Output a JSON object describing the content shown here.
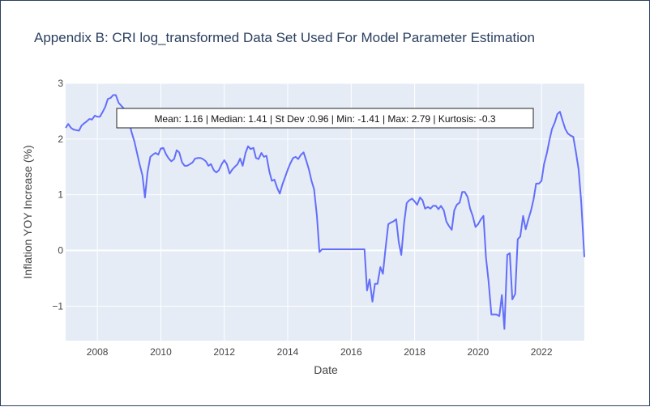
{
  "chart_data": {
    "type": "line",
    "title": "Appendix B: CRI log_transformed Data Set Used For Model Parameter Estimation",
    "xlabel": "Date",
    "ylabel": "Inflation YOY Increase (%)",
    "xlim": [
      2007.0,
      2023.35
    ],
    "ylim": [
      -1.62,
      3.0
    ],
    "x_ticks": [
      2008,
      2010,
      2012,
      2014,
      2016,
      2018,
      2020,
      2022
    ],
    "x_tick_labels": [
      "2008",
      "2010",
      "2012",
      "2014",
      "2016",
      "2018",
      "2020",
      "2022"
    ],
    "y_ticks": [
      -1,
      0,
      1,
      2,
      3
    ],
    "y_tick_labels": [
      "−1",
      "0",
      "1",
      "2",
      "3"
    ],
    "grid": true,
    "annotation": "Mean: 1.16 | Median: 1.41 | St Dev :0.96 | Min: -1.41 | Max: 2.79 | Kurtosis: -0.3",
    "series": [
      {
        "color": "#636efa",
        "x": [
          2007.0,
          2007.08,
          2007.17,
          2007.25,
          2007.33,
          2007.42,
          2007.5,
          2007.58,
          2007.67,
          2007.75,
          2007.83,
          2007.92,
          2008.0,
          2008.08,
          2008.17,
          2008.25,
          2008.33,
          2008.42,
          2008.5,
          2008.58,
          2008.67,
          2008.75,
          2008.83,
          2008.92,
          2009.0,
          2009.08,
          2009.17,
          2009.25,
          2009.33,
          2009.42,
          2009.5,
          2009.58,
          2009.67,
          2009.75,
          2009.83,
          2009.92,
          2010.0,
          2010.08,
          2010.17,
          2010.25,
          2010.33,
          2010.42,
          2010.5,
          2010.58,
          2010.67,
          2010.75,
          2010.83,
          2010.92,
          2011.0,
          2011.08,
          2011.17,
          2011.25,
          2011.33,
          2011.42,
          2011.5,
          2011.58,
          2011.67,
          2011.75,
          2011.83,
          2011.92,
          2012.0,
          2012.08,
          2012.17,
          2012.25,
          2012.33,
          2012.42,
          2012.5,
          2012.58,
          2012.67,
          2012.75,
          2012.83,
          2012.92,
          2013.0,
          2013.08,
          2013.17,
          2013.25,
          2013.33,
          2013.42,
          2013.5,
          2013.58,
          2013.67,
          2013.75,
          2013.83,
          2013.92,
          2014.0,
          2014.08,
          2014.17,
          2014.25,
          2014.33,
          2014.42,
          2014.5,
          2014.58,
          2014.67,
          2014.75,
          2014.83,
          2014.92,
          2015.0,
          2015.08,
          2015.17,
          2015.25,
          2015.33,
          2015.42,
          2015.5,
          2016.0,
          2016.42,
          2016.5,
          2016.58,
          2016.67,
          2016.75,
          2016.83,
          2016.92,
          2017.0,
          2017.08,
          2017.17,
          2017.25,
          2017.33,
          2017.42,
          2017.5,
          2017.58,
          2017.67,
          2017.75,
          2017.83,
          2017.92,
          2018.0,
          2018.08,
          2018.17,
          2018.25,
          2018.33,
          2018.42,
          2018.5,
          2018.58,
          2018.67,
          2018.75,
          2018.83,
          2018.92,
          2019.0,
          2019.08,
          2019.17,
          2019.25,
          2019.33,
          2019.42,
          2019.5,
          2019.58,
          2019.67,
          2019.75,
          2019.83,
          2019.92,
          2020.0,
          2020.08,
          2020.17,
          2020.25,
          2020.33,
          2020.42,
          2020.5,
          2020.58,
          2020.67,
          2020.75,
          2020.83,
          2020.92,
          2021.0,
          2021.08,
          2021.17,
          2021.25,
          2021.33,
          2021.42,
          2021.5,
          2021.58,
          2021.67,
          2021.75,
          2021.83,
          2021.92,
          2022.0,
          2022.08,
          2022.17,
          2022.25,
          2022.33,
          2022.42,
          2022.5,
          2022.58,
          2022.67,
          2022.75,
          2022.83,
          2022.92,
          2023.0,
          2023.08,
          2023.17,
          2023.25,
          2023.35
        ],
        "y": [
          2.2,
          2.27,
          2.2,
          2.17,
          2.16,
          2.15,
          2.24,
          2.28,
          2.32,
          2.36,
          2.35,
          2.42,
          2.4,
          2.4,
          2.49,
          2.58,
          2.72,
          2.74,
          2.79,
          2.79,
          2.65,
          2.6,
          2.55,
          2.5,
          2.3,
          2.12,
          1.95,
          1.75,
          1.55,
          1.35,
          0.95,
          1.4,
          1.68,
          1.72,
          1.75,
          1.72,
          1.83,
          1.84,
          1.72,
          1.65,
          1.6,
          1.64,
          1.8,
          1.76,
          1.58,
          1.52,
          1.52,
          1.55,
          1.58,
          1.65,
          1.66,
          1.66,
          1.64,
          1.6,
          1.52,
          1.55,
          1.44,
          1.4,
          1.44,
          1.55,
          1.62,
          1.55,
          1.38,
          1.45,
          1.5,
          1.55,
          1.65,
          1.52,
          1.75,
          1.87,
          1.82,
          1.84,
          1.66,
          1.64,
          1.75,
          1.68,
          1.7,
          1.42,
          1.25,
          1.27,
          1.12,
          1.02,
          1.18,
          1.32,
          1.45,
          1.56,
          1.66,
          1.68,
          1.64,
          1.72,
          1.76,
          1.62,
          1.45,
          1.25,
          1.1,
          0.62,
          -0.03,
          0.02,
          0.02,
          0.02,
          0.02,
          0.02,
          0.02,
          0.02,
          0.02,
          -0.72,
          -0.52,
          -0.92,
          -0.6,
          -0.6,
          -0.3,
          -0.42,
          0.02,
          0.47,
          0.5,
          0.52,
          0.56,
          0.15,
          -0.08,
          0.5,
          0.85,
          0.9,
          0.93,
          0.88,
          0.82,
          0.95,
          0.9,
          0.75,
          0.78,
          0.75,
          0.8,
          0.8,
          0.74,
          0.8,
          0.72,
          0.52,
          0.44,
          0.37,
          0.72,
          0.82,
          0.86,
          1.05,
          1.05,
          0.96,
          0.75,
          0.62,
          0.42,
          0.47,
          0.55,
          0.62,
          -0.13,
          -0.55,
          -1.15,
          -1.15,
          -1.15,
          -1.18,
          -0.8,
          -1.41,
          -0.08,
          -0.05,
          -0.88,
          -0.78,
          0.2,
          0.25,
          0.62,
          0.38,
          0.55,
          0.72,
          0.92,
          1.2,
          1.2,
          1.25,
          1.55,
          1.75,
          1.98,
          2.18,
          2.3,
          2.45,
          2.49,
          2.32,
          2.18,
          2.1,
          2.06,
          2.04,
          1.78,
          1.45,
          0.88,
          -0.12
        ]
      }
    ]
  }
}
